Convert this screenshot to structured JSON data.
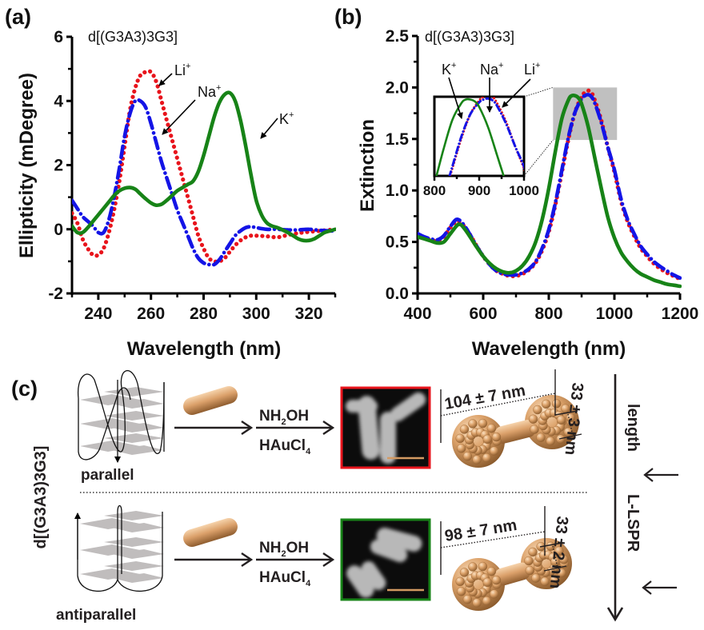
{
  "panels": {
    "a": "(a)",
    "b": "(b)",
    "c": "(c)"
  },
  "colors": {
    "li": "#e8141c",
    "na": "#1414e6",
    "k": "#178317",
    "gold": "#d49a62",
    "parallel": "#e8141c",
    "antiparallel": "#178317",
    "zoom_box": "#c0c0c0"
  },
  "chart_data": [
    {
      "id": "a",
      "type": "line",
      "title": "d[(G3A3)3G3]",
      "xlabel": "Wavelength (nm)",
      "ylabel": "Ellipticity (mDegree)",
      "xlim": [
        230,
        330
      ],
      "ylim": [
        -2,
        6
      ],
      "xticks": [
        240,
        260,
        280,
        300,
        320
      ],
      "yticks": [
        -2,
        0,
        2,
        4,
        6
      ],
      "xtick_labels": [
        "240",
        "260",
        "280",
        "300",
        "320"
      ],
      "ytick_labels": [
        "-2",
        "0",
        "2",
        "4",
        "6"
      ],
      "grid": false,
      "annotations": [
        {
          "label": "Li",
          "sup": "+",
          "series": "Li+"
        },
        {
          "label": "Na",
          "sup": "+",
          "series": "Na+"
        },
        {
          "label": "K",
          "sup": "+",
          "series": "K+"
        }
      ],
      "series": [
        {
          "name": "Li+",
          "style": "dotted",
          "x": [
            230,
            232,
            234,
            236,
            238,
            240,
            242,
            244,
            246,
            248,
            250,
            252,
            254,
            256,
            258,
            260,
            262,
            264,
            266,
            268,
            270,
            272,
            274,
            276,
            278,
            280,
            282,
            284,
            286,
            288,
            290,
            292,
            294,
            296,
            298,
            300,
            304,
            308,
            312,
            316,
            320,
            324,
            328,
            330
          ],
          "y": [
            0.5,
            0.2,
            -0.3,
            -0.6,
            -0.8,
            -0.8,
            -0.6,
            -0.1,
            0.6,
            1.5,
            2.6,
            3.7,
            4.4,
            4.8,
            4.9,
            4.9,
            4.6,
            4.0,
            3.4,
            2.8,
            2.2,
            1.6,
            1.0,
            0.4,
            -0.2,
            -0.6,
            -0.9,
            -1.0,
            -1.0,
            -0.9,
            -0.7,
            -0.5,
            -0.35,
            -0.25,
            -0.2,
            -0.2,
            -0.22,
            -0.25,
            -0.18,
            -0.12,
            -0.08,
            -0.05,
            -0.02,
            0
          ]
        },
        {
          "name": "Na+",
          "style": "dash-dot",
          "x": [
            230,
            232,
            234,
            236,
            238,
            240,
            242,
            244,
            246,
            248,
            250,
            252,
            254,
            256,
            258,
            260,
            262,
            264,
            266,
            268,
            270,
            272,
            274,
            276,
            278,
            280,
            282,
            284,
            286,
            288,
            290,
            292,
            294,
            296,
            298,
            300,
            304,
            308,
            312,
            316,
            320,
            324,
            328,
            330
          ],
          "y": [
            0.9,
            0.65,
            0.4,
            0.25,
            0.1,
            -0.1,
            -0.1,
            0.3,
            1.0,
            1.9,
            2.9,
            3.6,
            4.0,
            4.0,
            3.8,
            3.3,
            2.7,
            2.1,
            1.6,
            1.1,
            0.6,
            0.2,
            -0.2,
            -0.6,
            -0.9,
            -1.05,
            -1.1,
            -1.1,
            -0.95,
            -0.7,
            -0.45,
            -0.2,
            -0.05,
            0.05,
            0.08,
            0.05,
            0.0,
            0.0,
            -0.02,
            -0.02,
            0.0,
            -0.03,
            -0.05,
            -0.05
          ]
        },
        {
          "name": "K+",
          "style": "solid",
          "x": [
            230,
            232,
            234,
            236,
            238,
            240,
            242,
            244,
            246,
            248,
            250,
            252,
            254,
            256,
            258,
            260,
            262,
            264,
            266,
            268,
            270,
            272,
            274,
            276,
            278,
            280,
            282,
            284,
            286,
            288,
            290,
            292,
            294,
            296,
            298,
            300,
            302,
            304,
            306,
            308,
            310,
            312,
            314,
            316,
            318,
            320,
            322,
            324,
            326,
            328,
            330
          ],
          "y": [
            0.1,
            -0.1,
            -0.1,
            0.05,
            0.25,
            0.45,
            0.65,
            0.85,
            1.05,
            1.2,
            1.28,
            1.3,
            1.25,
            1.1,
            0.95,
            0.82,
            0.75,
            0.78,
            0.9,
            1.05,
            1.2,
            1.3,
            1.4,
            1.5,
            1.8,
            2.3,
            2.9,
            3.5,
            3.95,
            4.2,
            4.25,
            4.0,
            3.4,
            2.6,
            1.7,
            0.9,
            0.45,
            0.2,
            0.1,
            0.05,
            -0.02,
            -0.1,
            -0.2,
            -0.3,
            -0.35,
            -0.35,
            -0.3,
            -0.2,
            -0.1,
            -0.05,
            0
          ]
        }
      ]
    },
    {
      "id": "b",
      "type": "line",
      "title": "d[(G3A3)3G3]",
      "xlabel": "Wavelength (nm)",
      "ylabel": "Extinction",
      "xlim": [
        400,
        1200
      ],
      "ylim": [
        0.0,
        2.5
      ],
      "xticks": [
        400,
        600,
        800,
        1000,
        1200
      ],
      "yticks": [
        0.0,
        0.5,
        1.0,
        1.5,
        2.0,
        2.5
      ],
      "xtick_labels": [
        "400",
        "600",
        "800",
        "1000",
        "1200"
      ],
      "ytick_labels": [
        "0.0",
        "0.5",
        "1.0",
        "1.5",
        "2.0",
        "2.5"
      ],
      "grid": false,
      "zoom_region": {
        "x": [
          813,
          1008
        ],
        "y": [
          1.49,
          2.0
        ]
      },
      "annotations": [
        {
          "label": "K",
          "sup": "+",
          "series": "K+"
        },
        {
          "label": "Na",
          "sup": "+",
          "series": "Na+"
        },
        {
          "label": "Li",
          "sup": "+",
          "series": "Li+"
        }
      ],
      "inset": {
        "xlim": [
          800,
          1000
        ],
        "ylim": [
          1.1,
          1.95
        ],
        "xticks": [
          800,
          900,
          1000
        ],
        "xtick_labels": [
          "800",
          "900",
          "1000"
        ]
      },
      "series": [
        {
          "name": "Li+",
          "style": "dotted",
          "x": [
            400,
            420,
            440,
            460,
            480,
            500,
            520,
            540,
            560,
            580,
            600,
            620,
            640,
            660,
            680,
            700,
            720,
            740,
            760,
            780,
            800,
            820,
            840,
            860,
            880,
            900,
            910,
            920,
            930,
            940,
            960,
            980,
            1000,
            1020,
            1040,
            1060,
            1080,
            1100,
            1120,
            1140,
            1160,
            1180,
            1200
          ],
          "y": [
            0.56,
            0.54,
            0.52,
            0.51,
            0.55,
            0.64,
            0.7,
            0.66,
            0.57,
            0.46,
            0.36,
            0.28,
            0.22,
            0.19,
            0.17,
            0.17,
            0.19,
            0.23,
            0.3,
            0.42,
            0.6,
            0.86,
            1.18,
            1.5,
            1.76,
            1.91,
            1.95,
            1.97,
            1.95,
            1.88,
            1.68,
            1.42,
            1.18,
            0.9,
            0.7,
            0.56,
            0.44,
            0.36,
            0.29,
            0.24,
            0.2,
            0.17,
            0.14
          ]
        },
        {
          "name": "Na+",
          "style": "dash-dot",
          "x": [
            400,
            420,
            440,
            460,
            480,
            500,
            520,
            540,
            560,
            580,
            600,
            620,
            640,
            660,
            680,
            700,
            720,
            740,
            760,
            780,
            800,
            820,
            840,
            860,
            880,
            900,
            910,
            920,
            930,
            940,
            960,
            980,
            1000,
            1020,
            1040,
            1060,
            1080,
            1100,
            1120,
            1140,
            1160,
            1180,
            1200
          ],
          "y": [
            0.58,
            0.55,
            0.53,
            0.52,
            0.56,
            0.65,
            0.72,
            0.67,
            0.57,
            0.46,
            0.36,
            0.28,
            0.22,
            0.19,
            0.18,
            0.18,
            0.2,
            0.24,
            0.31,
            0.44,
            0.62,
            0.88,
            1.2,
            1.52,
            1.76,
            1.89,
            1.92,
            1.93,
            1.91,
            1.85,
            1.66,
            1.42,
            1.2,
            0.92,
            0.72,
            0.58,
            0.46,
            0.38,
            0.31,
            0.26,
            0.22,
            0.18,
            0.15
          ]
        },
        {
          "name": "K+",
          "style": "solid",
          "x": [
            400,
            420,
            440,
            460,
            480,
            500,
            520,
            530,
            540,
            560,
            580,
            600,
            620,
            640,
            660,
            680,
            700,
            720,
            740,
            760,
            780,
            800,
            820,
            840,
            860,
            870,
            880,
            890,
            900,
            920,
            940,
            960,
            980,
            1000,
            1020,
            1040,
            1060,
            1080,
            1100,
            1120,
            1140,
            1160,
            1180,
            1200
          ],
          "y": [
            0.55,
            0.53,
            0.51,
            0.49,
            0.5,
            0.58,
            0.66,
            0.67,
            0.64,
            0.55,
            0.45,
            0.36,
            0.29,
            0.24,
            0.21,
            0.2,
            0.22,
            0.27,
            0.36,
            0.5,
            0.72,
            1.02,
            1.38,
            1.7,
            1.88,
            1.92,
            1.92,
            1.9,
            1.84,
            1.62,
            1.32,
            1.02,
            0.74,
            0.54,
            0.4,
            0.31,
            0.24,
            0.19,
            0.16,
            0.13,
            0.11,
            0.09,
            0.08,
            0.07
          ]
        }
      ]
    }
  ],
  "scheme": {
    "sequence_label": "d[(G3A3)3G3]",
    "rows": [
      {
        "topology": "parallel",
        "reagent_top": "NH",
        "reagent_top_sub": "2",
        "reagent_top_tail": "OH",
        "reagent_bottom": "HAuCl",
        "reagent_bottom_sub": "4",
        "length": "104 ± 7 nm",
        "width": "33 ± 3 nm"
      },
      {
        "topology": "antiparallel",
        "reagent_top": "NH",
        "reagent_top_sub": "2",
        "reagent_top_tail": "OH",
        "reagent_bottom": "HAuCl",
        "reagent_bottom_sub": "4",
        "length": "98 ± 7 nm",
        "width": "33 ± 2 nm"
      }
    ],
    "trend_labels": [
      "length",
      "L-LSPR"
    ]
  }
}
